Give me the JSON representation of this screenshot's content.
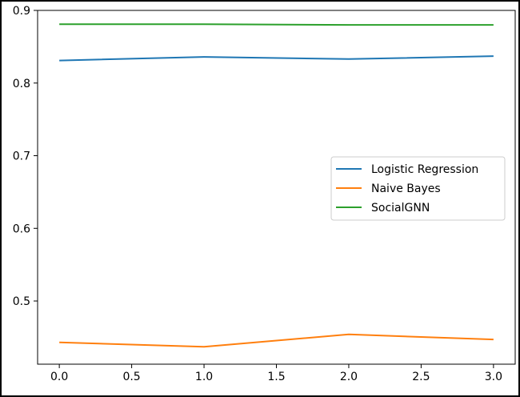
{
  "chart_data": {
    "type": "line",
    "title": "",
    "xlabel": "",
    "ylabel": "",
    "xlim": [
      -0.15,
      3.15
    ],
    "ylim": [
      0.413,
      0.9
    ],
    "xticks": [
      0.0,
      0.5,
      1.0,
      1.5,
      2.0,
      2.5,
      3.0
    ],
    "xtick_labels": [
      "0.0",
      "0.5",
      "1.0",
      "1.5",
      "2.0",
      "2.5",
      "3.0"
    ],
    "yticks": [
      0.5,
      0.6,
      0.7,
      0.8,
      0.9
    ],
    "ytick_labels": [
      "0.5",
      "0.6",
      "0.7",
      "0.8",
      "0.9"
    ],
    "grid": false,
    "legend_position": "center-right",
    "x": [
      0,
      1,
      2,
      3
    ],
    "series": [
      {
        "name": "Logistic Regression",
        "color": "#1f77b4",
        "values": [
          0.831,
          0.836,
          0.833,
          0.837
        ]
      },
      {
        "name": "Naive Bayes",
        "color": "#ff7f0e",
        "values": [
          0.443,
          0.437,
          0.454,
          0.447
        ]
      },
      {
        "name": "SocialGNN",
        "color": "#2ca02c",
        "values": [
          0.881,
          0.881,
          0.88,
          0.88
        ]
      }
    ]
  }
}
